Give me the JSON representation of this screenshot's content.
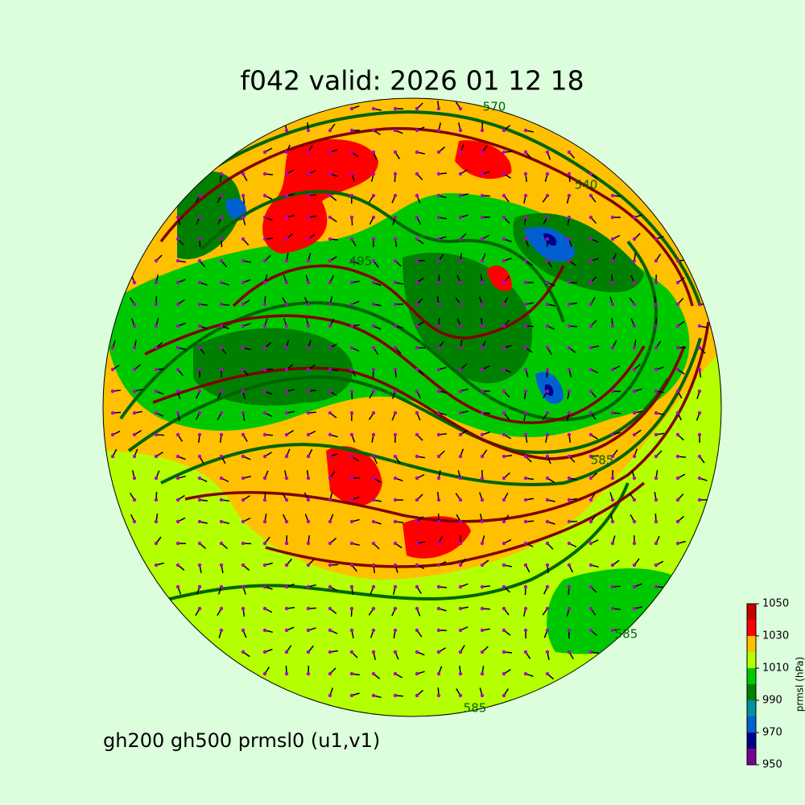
{
  "title": "f042 valid:   2026 01 12 18",
  "caption": "gh200 gh500 prmsl0 (u1,v1)",
  "colorbar": {
    "label": "prmsl (hPa)",
    "lim": [
      950,
      1050
    ],
    "ticks": [
      950,
      970,
      990,
      1010,
      1030,
      1050
    ],
    "levels": [
      950,
      960,
      970,
      980,
      990,
      1000,
      1010,
      1020,
      1030,
      1040,
      1050
    ],
    "colors": [
      "#7a0090",
      "#00008b",
      "#0060d0",
      "#0090a0",
      "#008000",
      "#00c800",
      "#b4ff00",
      "#ffc000",
      "#ff0000",
      "#c80000"
    ]
  },
  "contour_labels": [
    "570",
    "540",
    "495",
    "585",
    "585",
    "585"
  ]
}
